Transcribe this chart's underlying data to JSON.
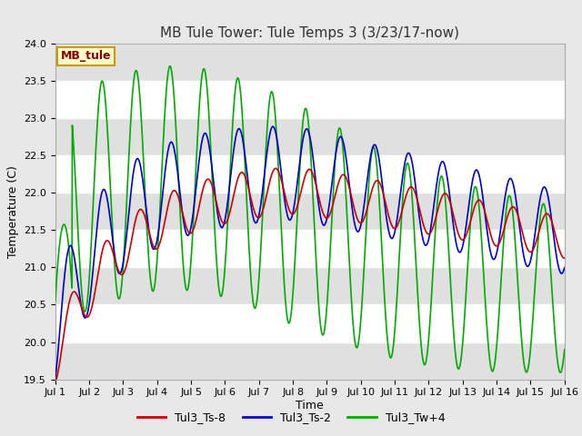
{
  "title": "MB Tule Tower: Tule Temps 3 (3/23/17-now)",
  "xlabel": "Time",
  "ylabel": "Temperature (C)",
  "ylim": [
    19.5,
    24.0
  ],
  "xlim": [
    0,
    15
  ],
  "xtick_labels": [
    "Jul 1",
    "Jul 2",
    "Jul 3",
    "Jul 4",
    "Jul 5",
    "Jul 6",
    "Jul 7",
    "Jul 8",
    "Jul 9",
    "Jul 10",
    "Jul 11",
    "Jul 12",
    "Jul 13",
    "Jul 14",
    "Jul 15",
    "Jul 16"
  ],
  "ytick_values": [
    19.5,
    20.0,
    20.5,
    21.0,
    21.5,
    22.0,
    22.5,
    23.0,
    23.5,
    24.0
  ],
  "legend_labels": [
    "Tul3_Ts-8",
    "Tul3_Ts-2",
    "Tul3_Tw+4"
  ],
  "legend_colors": [
    "#cc0000",
    "#0000cc",
    "#00aa00"
  ],
  "bg_color": "#e8e8e8",
  "plot_bg_color": "#ffffff",
  "band_color": "#e0e0e0",
  "inset_label": "MB_tule",
  "inset_bg": "#ffffcc",
  "inset_border": "#cc9900",
  "inset_text_color": "#880000",
  "title_color": "#333333"
}
